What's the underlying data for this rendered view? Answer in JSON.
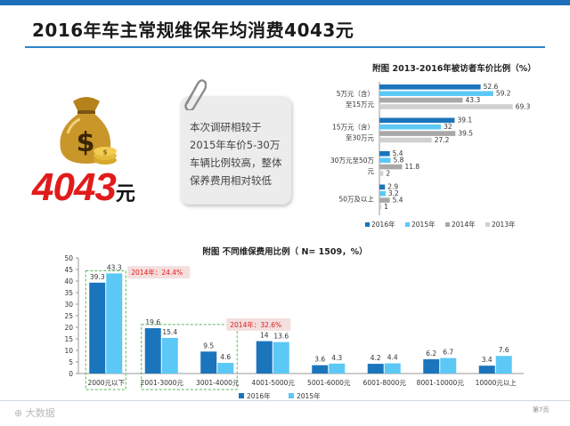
{
  "slide": {
    "title": "2016年车主常规维保年均消费4043元",
    "amount_number": "4043",
    "amount_unit": "元",
    "note_text": "本次调研相较于2015年车价5-30万车辆比例较高，整体保养费用相对较低",
    "watermark": "大数据",
    "page_number": "第7页"
  },
  "colors": {
    "bar_2016": "#1b75bc",
    "bar_2015": "#5bc8f5",
    "bar_2014": "#a8a8a8",
    "bar_2013": "#d0d0d0",
    "accent_red": "#e11b1b",
    "dashed_green": "#5ab55a",
    "annotation_bg": "#f4dede",
    "annotation_text": "#e11b1b"
  },
  "chart_data": [
    {
      "type": "bar",
      "orientation": "horizontal",
      "title": "附图  2013-2016年被访者车价比例（%）",
      "categories": [
        [
          "5万元（含）",
          "至15万元"
        ],
        [
          "15万元（含）",
          "至30万元"
        ],
        [
          "30万元至50万",
          "元"
        ],
        [
          "50万及以上"
        ]
      ],
      "series": [
        {
          "name": "2016年",
          "values": [
            52.6,
            39.1,
            5.4,
            2.9
          ]
        },
        {
          "name": "2015年",
          "values": [
            59.2,
            32.0,
            5.8,
            3.2
          ]
        },
        {
          "name": "2014年",
          "values": [
            43.3,
            39.5,
            11.8,
            5.4
          ]
        },
        {
          "name": "2013年",
          "values": [
            69.3,
            27.2,
            2.0,
            1.0
          ]
        }
      ],
      "xlim": [
        0,
        75
      ],
      "legend_position": "bottom"
    },
    {
      "type": "bar",
      "title": "附图  不同维保费用比例（ N= 1509，%）",
      "categories": [
        "2000元以下",
        "2001-3000元",
        "3001-4000元",
        "4001-5000元",
        "5001-6000元",
        "6001-8000元",
        "8001-10000元",
        "10000元以上"
      ],
      "series": [
        {
          "name": "2016年",
          "values": [
            39.3,
            19.6,
            9.5,
            14,
            3.6,
            4.2,
            6.2,
            3.4
          ]
        },
        {
          "name": "2015年",
          "values": [
            43.3,
            15.4,
            4.6,
            13.6,
            4.3,
            4.4,
            6.7,
            7.6
          ]
        }
      ],
      "ylim": [
        0,
        50
      ],
      "yticks": [
        0,
        5,
        10,
        15,
        20,
        25,
        30,
        35,
        40,
        45,
        50
      ],
      "annotations": [
        "2014年：24.4%",
        "2014年：32.6%"
      ],
      "legend_position": "bottom",
      "grid": false
    }
  ]
}
